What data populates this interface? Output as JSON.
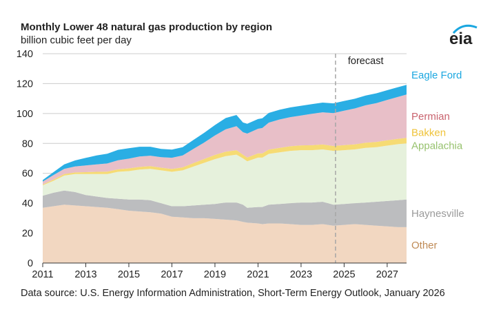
{
  "header": {
    "title": "Monthly Lower 48 natural gas production by region",
    "subtitle": "billion cubic feet per day",
    "logo_text": "eia"
  },
  "footer": {
    "source": "Data source: U.S. Energy Information Administration, Short-Term Energy Outlook, January 2026"
  },
  "colors": {
    "eagle_ford": "#2aaee4",
    "permian": "#e8bfc8",
    "bakken": "#f6db74",
    "appalachia": "#e6f1dc",
    "haynesville": "#bcbdbf",
    "other": "#f2d7c1",
    "grid": "#cccccc",
    "forecast_line": "#a6a6a6",
    "label_eagle_ford": "#1ba7e0",
    "label_permian": "#c9636e",
    "label_bakken": "#efc339",
    "label_appalachia": "#97c26e",
    "label_haynesville": "#9a9a9a",
    "label_other": "#bf8a55"
  },
  "chart_data": {
    "type": "area",
    "stacked": true,
    "title": "Monthly Lower 48 natural gas production by region",
    "ylabel": "billion cubic feet per day",
    "xlabel": "",
    "xlim": [
      2011,
      2027.9
    ],
    "ylim": [
      0,
      140
    ],
    "yticks": [
      0,
      20,
      40,
      60,
      80,
      100,
      120,
      140
    ],
    "xticks": [
      2011,
      2013,
      2015,
      2017,
      2019,
      2021,
      2023,
      2025,
      2027
    ],
    "ytick_labels": [
      "0",
      "20",
      "40",
      "60",
      "80",
      "100",
      "120",
      "140"
    ],
    "xtick_labels": [
      "2011",
      "2013",
      "2015",
      "2017",
      "2019",
      "2021",
      "2023",
      "2025",
      "2027"
    ],
    "grid": "horizontal",
    "forecast_start": 2024.6,
    "forecast_label": "forecast",
    "x": [
      2011.0,
      2011.5,
      2012.0,
      2012.5,
      2013.0,
      2013.5,
      2014.0,
      2014.5,
      2015.0,
      2015.5,
      2016.0,
      2016.5,
      2017.0,
      2017.5,
      2018.0,
      2018.5,
      2019.0,
      2019.5,
      2020.0,
      2020.3,
      2020.5,
      2021.0,
      2021.2,
      2021.5,
      2022.0,
      2022.5,
      2023.0,
      2023.5,
      2024.0,
      2024.5,
      2025.0,
      2025.5,
      2026.0,
      2026.5,
      2027.0,
      2027.5,
      2027.9
    ],
    "series": [
      {
        "name": "Other",
        "label_color_key": "label_other",
        "values": [
          37,
          38,
          39,
          38.5,
          38,
          37.5,
          37,
          36,
          35,
          34.5,
          34,
          33,
          31,
          30.5,
          30,
          30,
          29.5,
          29,
          28.5,
          27.5,
          27,
          26.5,
          26,
          26.5,
          26.5,
          26,
          25.5,
          25.5,
          26,
          25,
          25.5,
          26,
          25.5,
          25,
          24.5,
          24,
          24
        ]
      },
      {
        "name": "Haynesville",
        "label_color_key": "label_haynesville",
        "values": [
          8,
          9,
          9.5,
          9,
          7.5,
          7,
          6.5,
          7,
          7.5,
          8,
          8,
          7,
          7,
          7.5,
          8.5,
          9,
          10,
          11.5,
          12,
          11.5,
          10,
          11,
          11.5,
          12.5,
          13,
          14,
          15,
          15,
          15,
          14,
          14,
          14,
          15,
          16,
          17,
          18,
          18.5
        ]
      },
      {
        "name": "Appalachia",
        "label_color_key": "label_appalachia",
        "values": [
          7,
          8,
          10,
          12,
          14,
          15,
          16,
          18,
          19,
          20,
          21,
          22,
          23,
          24,
          26,
          28,
          30,
          31,
          32,
          31,
          31,
          33,
          33,
          34,
          34.5,
          35,
          35,
          35,
          35,
          36,
          36,
          36,
          36.5,
          36.5,
          37,
          37.5,
          37.5
        ]
      },
      {
        "name": "Bakken",
        "label_color_key": "label_bakken",
        "values": [
          0.5,
          0.8,
          1,
          1.1,
          1.3,
          1.5,
          1.6,
          1.7,
          1.8,
          1.8,
          1.8,
          1.8,
          1.9,
          2,
          2.3,
          2.6,
          2.8,
          3,
          3,
          2.5,
          2.6,
          2.8,
          2.8,
          2.9,
          3,
          3.1,
          3.2,
          3.3,
          3.3,
          3.3,
          3.4,
          3.4,
          3.5,
          3.5,
          3.6,
          3.6,
          3.7
        ]
      },
      {
        "name": "Permian",
        "label_color_key": "label_permian",
        "values": [
          2,
          3,
          3.5,
          4,
          4.5,
          5,
          5.5,
          6,
          6.5,
          7,
          7,
          7,
          7.5,
          8,
          9.5,
          11,
          13,
          15,
          16,
          15,
          16,
          16.5,
          17,
          18,
          19,
          19.5,
          20,
          21,
          21.5,
          22,
          23,
          24,
          25,
          26,
          27,
          28,
          29
        ]
      },
      {
        "name": "Eagle Ford",
        "label_color_key": "label_eagle_ford",
        "values": [
          1,
          2,
          3,
          4,
          5,
          6,
          6.5,
          7,
          7,
          6.5,
          6,
          5.5,
          5.5,
          5.5,
          6,
          6.5,
          7,
          7.5,
          7.5,
          6.5,
          6.5,
          6.5,
          6.5,
          6.5,
          6.5,
          6.5,
          6.5,
          6.5,
          6.5,
          6.5,
          6.5,
          6.5,
          6.5,
          6.5,
          6.5,
          6.5,
          6.5
        ]
      }
    ],
    "legend": "direct labels at right"
  }
}
